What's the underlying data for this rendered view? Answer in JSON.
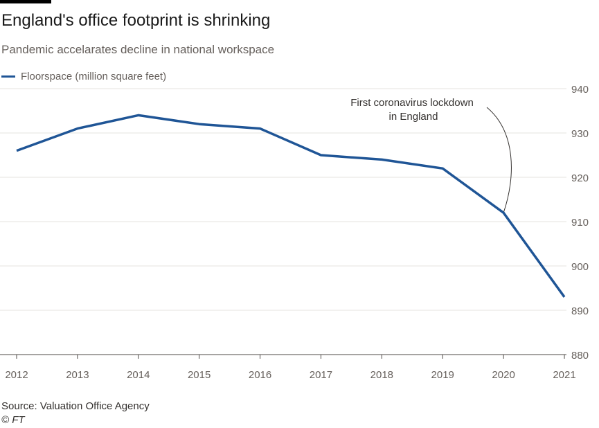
{
  "title": "England's office footprint is shrinking",
  "subtitle": "Pandemic accelarates decline in national workspace",
  "source": "Source: Valuation Office Agency",
  "copyright": "© FT",
  "colors": {
    "series": "#1f5596",
    "grid": "#e6e3df",
    "tick_text": "#66605c",
    "annotation": "#33302e"
  },
  "chart_data": {
    "type": "line",
    "title": "England's office footprint is shrinking",
    "subtitle": "Pandemic accelarates decline in national workspace",
    "x": [
      "2012",
      "2013",
      "2014",
      "2015",
      "2016",
      "2017",
      "2018",
      "2019",
      "2020",
      "2021"
    ],
    "series": [
      {
        "name": "Floorspace (million square feet)",
        "values": [
          926,
          931,
          934,
          932,
          931,
          925,
          924,
          922,
          912,
          893
        ]
      }
    ],
    "ylim": [
      880,
      940
    ],
    "yticks": [
      "880",
      "890",
      "900",
      "910",
      "920",
      "930",
      "940"
    ],
    "y_axis_side": "right",
    "grid": true,
    "legend_position": "top-left",
    "annotations": [
      {
        "lines": [
          "First coronavirus lockdown",
          "in England"
        ],
        "x": "2020",
        "y": 912
      }
    ]
  }
}
